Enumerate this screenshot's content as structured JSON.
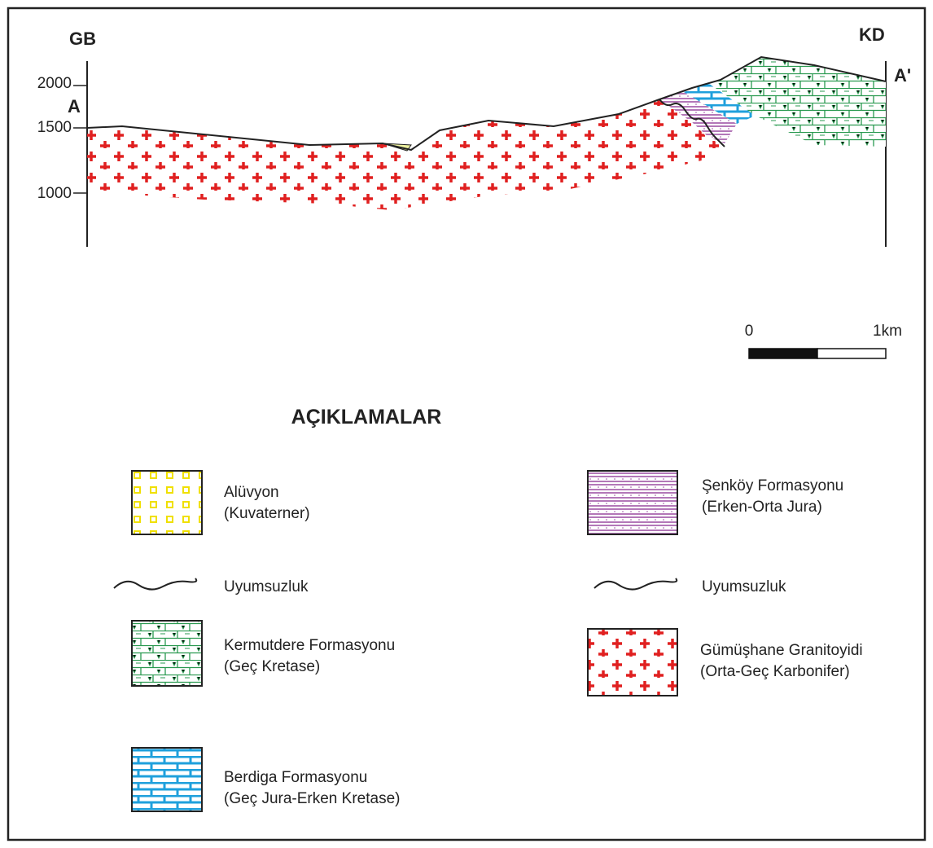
{
  "section": {
    "left_label": "GB",
    "right_label": "KD",
    "start": "A",
    "end": "A'",
    "elevations": [
      "2000",
      "1500",
      "1000"
    ]
  },
  "scale": {
    "start": "0",
    "end": "1km"
  },
  "legend": {
    "title": "AÇIKLAMALAR",
    "left": [
      {
        "label": "Alüvyon",
        "sublabel": "(Kuvaterner)"
      },
      {
        "label": "Uyumsuzluk"
      },
      {
        "label": "Kermutdere Formasyonu",
        "sublabel": "(Geç Kretase)"
      },
      {
        "label": "Berdiga Formasyonu",
        "sublabel": "(Geç Jura-Erken Kretase)"
      }
    ],
    "right": [
      {
        "label": "Şenköy Formasyonu",
        "sublabel": "(Erken-Orta Jura)"
      },
      {
        "label": "Uyumsuzluk"
      },
      {
        "label": "Gümüşhane Granitoyidi",
        "sublabel": "(Orta-Geç Karbonifer)"
      }
    ]
  }
}
